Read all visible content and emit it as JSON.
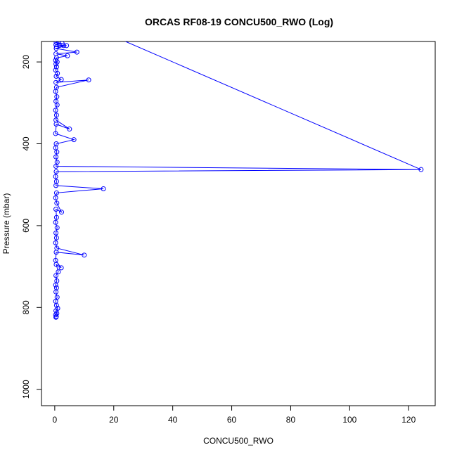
{
  "chart_data": {
    "type": "line",
    "title": "ORCAS RF08-19 CONCU500_RWO (Log)",
    "xlabel": "CONCU500_RWO",
    "ylabel": "Pressure (mbar)",
    "xlim": [
      -4.5,
      129
    ],
    "ylim": [
      1040,
      150
    ],
    "y_reversed": true,
    "x_ticks": [
      0,
      20,
      40,
      60,
      80,
      100,
      120
    ],
    "y_ticks": [
      200,
      400,
      600,
      800,
      1000
    ],
    "grid": false,
    "color": "#0000ff",
    "marker": "open-circle",
    "series": [
      {
        "values": [
          [
            1.2,
            150
          ],
          [
            0.5,
            152
          ],
          [
            2.5,
            155
          ],
          [
            0.4,
            158
          ],
          [
            3.0,
            160
          ],
          [
            0.6,
            163
          ],
          [
            4.0,
            160
          ],
          [
            0.5,
            167
          ],
          [
            7.5,
            176
          ],
          [
            0.4,
            180
          ],
          [
            4.3,
            185
          ],
          [
            0.6,
            190
          ],
          [
            0.3,
            196
          ],
          [
            0.8,
            200
          ],
          [
            0.4,
            205
          ],
          [
            0.6,
            212
          ],
          [
            0.3,
            220
          ],
          [
            0.9,
            228
          ],
          [
            0.5,
            235
          ],
          [
            2.2,
            243
          ],
          [
            0.4,
            250
          ],
          [
            11.5,
            244
          ],
          [
            0.6,
            262
          ],
          [
            0.3,
            272
          ],
          [
            0.7,
            285
          ],
          [
            0.4,
            296
          ],
          [
            0.8,
            305
          ],
          [
            0.3,
            318
          ],
          [
            0.6,
            330
          ],
          [
            0.4,
            342
          ],
          [
            5.0,
            364
          ],
          [
            0.5,
            352
          ],
          [
            0.3,
            375
          ],
          [
            6.5,
            390
          ],
          [
            0.5,
            400
          ],
          [
            0.3,
            410
          ],
          [
            0.7,
            420
          ],
          [
            0.4,
            432
          ],
          [
            0.8,
            445
          ],
          [
            0.4,
            455
          ],
          [
            124.2,
            463
          ],
          [
            0.5,
            468
          ],
          [
            0.3,
            480
          ],
          [
            0.6,
            492
          ],
          [
            0.4,
            502
          ],
          [
            16.5,
            510
          ],
          [
            0.6,
            520
          ],
          [
            0.3,
            532
          ],
          [
            0.7,
            545
          ],
          [
            2.3,
            567
          ],
          [
            0.4,
            560
          ],
          [
            0.6,
            580
          ],
          [
            0.3,
            592
          ],
          [
            0.8,
            605
          ],
          [
            0.4,
            618
          ],
          [
            0.6,
            630
          ],
          [
            0.3,
            642
          ],
          [
            0.7,
            655
          ],
          [
            10.0,
            672
          ],
          [
            0.5,
            665
          ],
          [
            0.3,
            685
          ],
          [
            2.2,
            703
          ],
          [
            0.5,
            695
          ],
          [
            1.2,
            713
          ],
          [
            0.4,
            722
          ],
          [
            0.7,
            735
          ],
          [
            0.3,
            745
          ],
          [
            0.6,
            752
          ],
          [
            0.4,
            762
          ],
          [
            0.8,
            775
          ],
          [
            0.3,
            785
          ],
          [
            0.6,
            795
          ],
          [
            1.0,
            802
          ],
          [
            0.4,
            808
          ],
          [
            0.7,
            814
          ],
          [
            0.3,
            818
          ],
          [
            0.5,
            822
          ],
          [
            0.4,
            824
          ]
        ]
      }
    ]
  }
}
